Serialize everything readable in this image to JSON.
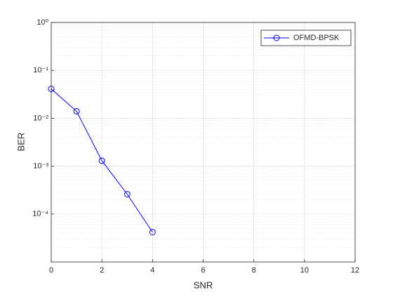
{
  "chart_data": {
    "type": "line",
    "xlabel": "SNR",
    "ylabel": "BER",
    "x": [
      0,
      1,
      2,
      3,
      4
    ],
    "series": [
      {
        "name": "OFMD-BPSK",
        "color": "#0000ff",
        "values": [
          0.041,
          0.014,
          0.0013,
          0.00026,
          4.2e-05
        ]
      }
    ],
    "xlim": [
      0,
      12
    ],
    "xticks": [
      0,
      2,
      4,
      6,
      8,
      10,
      12
    ],
    "ylim": [
      1e-05,
      1
    ],
    "yticks": [
      {
        "value": 0.0001,
        "label": "10⁻⁴"
      },
      {
        "value": 0.001,
        "label": "10⁻³"
      },
      {
        "value": 0.01,
        "label": "10⁻²"
      },
      {
        "value": 0.1,
        "label": "10⁻¹"
      },
      {
        "value": 1,
        "label": "10⁰"
      }
    ],
    "yscale": "log",
    "grid": true,
    "minor_grid": true,
    "legend": "northeast"
  }
}
